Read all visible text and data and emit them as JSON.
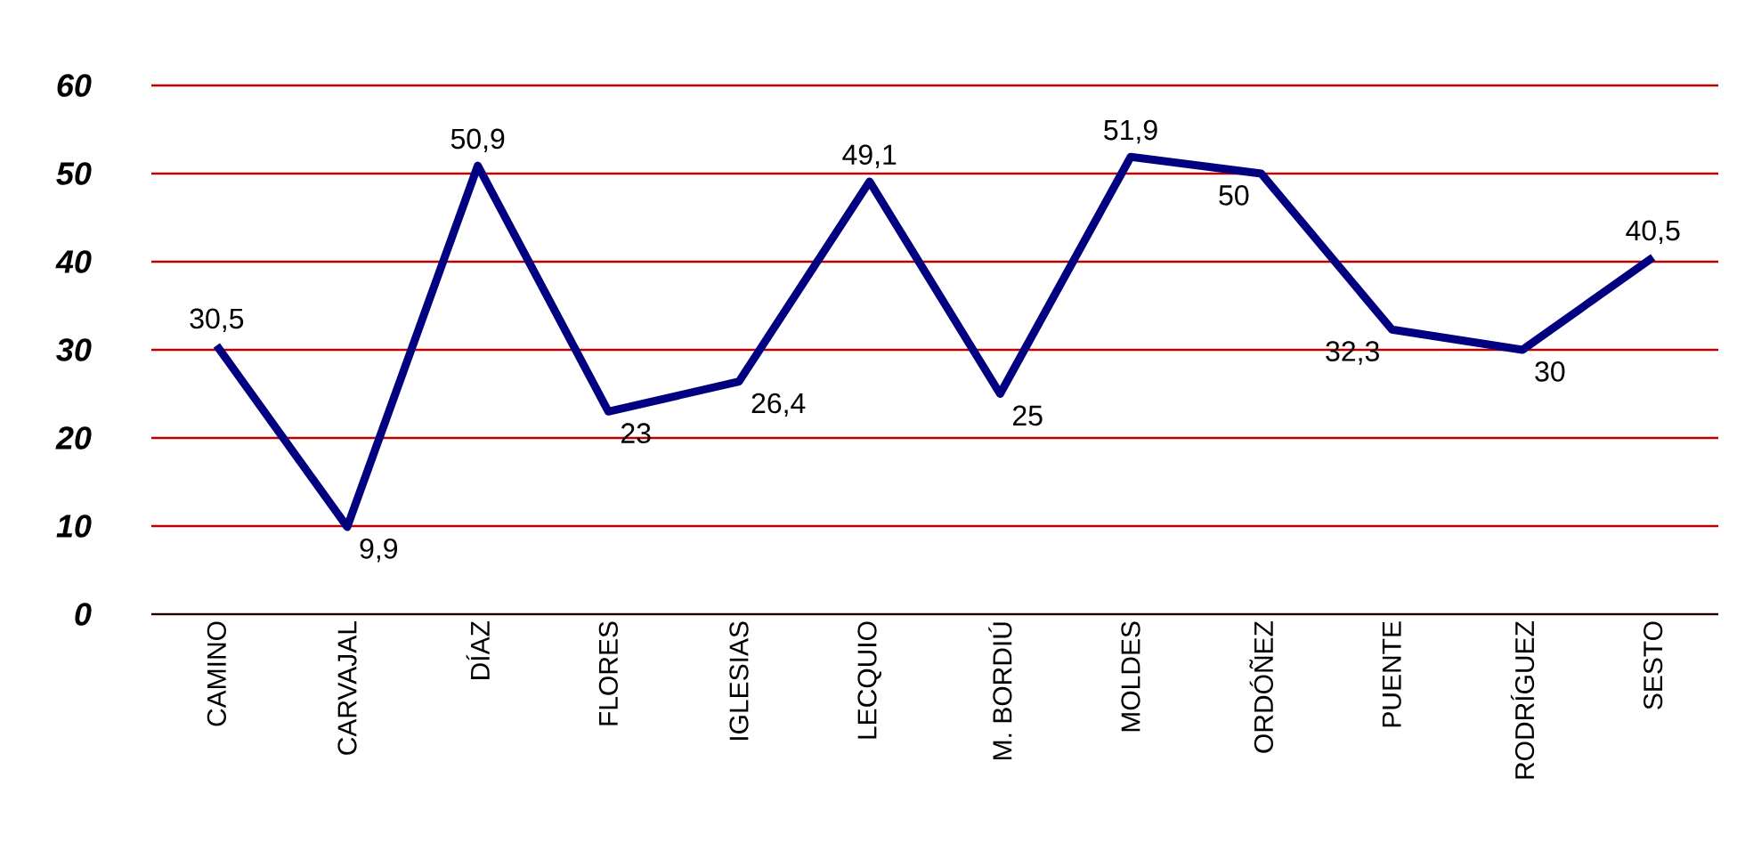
{
  "chart_data": {
    "type": "line",
    "categories": [
      "CAMINO",
      "CARVAJAL",
      "DÍAZ",
      "FLORES",
      "IGLESIAS",
      "LECQUIO",
      "M. BORDIÚ",
      "MOLDES",
      "ORDÓÑEZ",
      "PUENTE",
      "RODRÍGUEZ",
      "SESTO"
    ],
    "series": [
      {
        "color": "#000080",
        "values": [
          30.5,
          9.9,
          50.9,
          23,
          26.4,
          49.1,
          25,
          51.9,
          50,
          32.3,
          30,
          40.5
        ],
        "value_labels": [
          "30,5",
          "9,9",
          "50,9",
          "23",
          "26,4",
          "49,1",
          "25",
          "51,9",
          "50",
          "32,3",
          "30",
          "40,5"
        ]
      }
    ],
    "ylim": [
      0,
      60
    ],
    "yticks": [
      0,
      10,
      20,
      30,
      40,
      50,
      60
    ],
    "grid": "y",
    "marker": "none",
    "line_style": "solid"
  }
}
